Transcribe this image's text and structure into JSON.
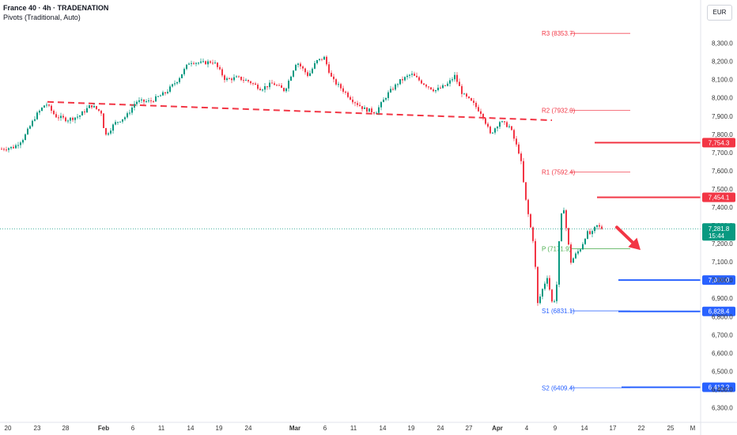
{
  "header": {
    "title": "France 40 · 4h · TRADENATION",
    "subtitle": "Pivots (Traditional, Auto)"
  },
  "currency": "EUR",
  "colors": {
    "up": "#089981",
    "down": "#f23645",
    "resistance": "#f23645",
    "support": "#2962ff",
    "pivot_p": "#4caf50",
    "trend": "#f23645",
    "text": "#131722",
    "axis_text": "#333333",
    "grid_current": "#089981"
  },
  "chart_data": {
    "type": "candlestick",
    "title": "France 40 · 4h · TRADENATION",
    "ylim": [
      6250,
      8450
    ],
    "x_range": [
      0,
      932
    ],
    "y_ticks": [
      6300,
      6400,
      6500,
      6600,
      6700,
      6800,
      6900,
      7000,
      7100,
      7200,
      7300,
      7400,
      7500,
      7600,
      7700,
      7800,
      7900,
      8000,
      8100,
      8200,
      8300
    ],
    "y_tick_labels": [
      "6,300.0",
      "6,400.0",
      "6,500.0",
      "6,600.0",
      "6,700.0",
      "6,800.0",
      "6,900.0",
      "7,000.0",
      "7,100.0",
      "7,200.0",
      "7,300.0",
      "7,400.0",
      "7,500.0",
      "7,600.0",
      "7,700.0",
      "7,800.0",
      "7,900.0",
      "8,000.0",
      "8,100.0",
      "8,200.0",
      "8,300.0"
    ],
    "x_ticks": [
      {
        "label": "20",
        "x": 10,
        "bold": false
      },
      {
        "label": "23",
        "x": 47,
        "bold": false
      },
      {
        "label": "28",
        "x": 83,
        "bold": false
      },
      {
        "label": "Feb",
        "x": 131,
        "bold": true
      },
      {
        "label": "6",
        "x": 168,
        "bold": false
      },
      {
        "label": "11",
        "x": 204,
        "bold": false
      },
      {
        "label": "14",
        "x": 241,
        "bold": false
      },
      {
        "label": "19",
        "x": 277,
        "bold": false
      },
      {
        "label": "24",
        "x": 314,
        "bold": false
      },
      {
        "label": "Mar",
        "x": 373,
        "bold": true
      },
      {
        "label": "6",
        "x": 411,
        "bold": false
      },
      {
        "label": "11",
        "x": 447,
        "bold": false
      },
      {
        "label": "14",
        "x": 484,
        "bold": false
      },
      {
        "label": "19",
        "x": 520,
        "bold": false
      },
      {
        "label": "24",
        "x": 557,
        "bold": false
      },
      {
        "label": "27",
        "x": 593,
        "bold": false
      },
      {
        "label": "Apr",
        "x": 629,
        "bold": true
      },
      {
        "label": "4",
        "x": 666,
        "bold": false
      },
      {
        "label": "9",
        "x": 702,
        "bold": false
      },
      {
        "label": "14",
        "x": 739,
        "bold": false
      },
      {
        "label": "17",
        "x": 775,
        "bold": false
      },
      {
        "label": "22",
        "x": 811,
        "bold": false
      },
      {
        "label": "25",
        "x": 848,
        "bold": false
      },
      {
        "label": "M",
        "x": 876,
        "bold": false
      }
    ],
    "price_path": [
      {
        "x": 2,
        "y": 7720
      },
      {
        "x": 18,
        "y": 7730
      },
      {
        "x": 30,
        "y": 7780
      },
      {
        "x": 45,
        "y": 7900
      },
      {
        "x": 58,
        "y": 7970
      },
      {
        "x": 70,
        "y": 7900
      },
      {
        "x": 85,
        "y": 7880
      },
      {
        "x": 100,
        "y": 7900
      },
      {
        "x": 115,
        "y": 7960
      },
      {
        "x": 128,
        "y": 7920
      },
      {
        "x": 133,
        "y": 7790
      },
      {
        "x": 145,
        "y": 7860
      },
      {
        "x": 160,
        "y": 7900
      },
      {
        "x": 172,
        "y": 7980
      },
      {
        "x": 190,
        "y": 7980
      },
      {
        "x": 210,
        "y": 8030
      },
      {
        "x": 225,
        "y": 8100
      },
      {
        "x": 240,
        "y": 8200
      },
      {
        "x": 255,
        "y": 8190
      },
      {
        "x": 270,
        "y": 8200
      },
      {
        "x": 285,
        "y": 8100
      },
      {
        "x": 300,
        "y": 8110
      },
      {
        "x": 315,
        "y": 8090
      },
      {
        "x": 330,
        "y": 8050
      },
      {
        "x": 345,
        "y": 8080
      },
      {
        "x": 360,
        "y": 8040
      },
      {
        "x": 375,
        "y": 8200
      },
      {
        "x": 390,
        "y": 8120
      },
      {
        "x": 400,
        "y": 8200
      },
      {
        "x": 410,
        "y": 8220
      },
      {
        "x": 420,
        "y": 8100
      },
      {
        "x": 432,
        "y": 8050
      },
      {
        "x": 445,
        "y": 7990
      },
      {
        "x": 460,
        "y": 7940
      },
      {
        "x": 475,
        "y": 7920
      },
      {
        "x": 490,
        "y": 8020
      },
      {
        "x": 505,
        "y": 8090
      },
      {
        "x": 520,
        "y": 8130
      },
      {
        "x": 535,
        "y": 8080
      },
      {
        "x": 550,
        "y": 8040
      },
      {
        "x": 565,
        "y": 8070
      },
      {
        "x": 575,
        "y": 8120
      },
      {
        "x": 585,
        "y": 8020
      },
      {
        "x": 598,
        "y": 7970
      },
      {
        "x": 610,
        "y": 7910
      },
      {
        "x": 620,
        "y": 7800
      },
      {
        "x": 632,
        "y": 7870
      },
      {
        "x": 645,
        "y": 7840
      },
      {
        "x": 652,
        "y": 7750
      },
      {
        "x": 658,
        "y": 7680
      },
      {
        "x": 664,
        "y": 7460
      },
      {
        "x": 670,
        "y": 7310
      },
      {
        "x": 675,
        "y": 7200
      },
      {
        "x": 680,
        "y": 6870
      },
      {
        "x": 686,
        "y": 6950
      },
      {
        "x": 692,
        "y": 7020
      },
      {
        "x": 698,
        "y": 6880
      },
      {
        "x": 703,
        "y": 6900
      },
      {
        "x": 708,
        "y": 7280
      },
      {
        "x": 712,
        "y": 7430
      },
      {
        "x": 717,
        "y": 7250
      },
      {
        "x": 722,
        "y": 7100
      },
      {
        "x": 728,
        "y": 7140
      },
      {
        "x": 735,
        "y": 7180
      },
      {
        "x": 742,
        "y": 7260
      },
      {
        "x": 748,
        "y": 7250
      },
      {
        "x": 754,
        "y": 7300
      },
      {
        "x": 758,
        "y": 7290
      },
      {
        "x": 762,
        "y": 7282
      }
    ],
    "pivots": [
      {
        "label": "R3 (8353.7)",
        "value": 8353.7,
        "kind": "resistance",
        "x_from": 685,
        "x_to": 797
      },
      {
        "label": "R2 (7932.0)",
        "value": 7932.0,
        "kind": "resistance",
        "x_from": 685,
        "x_to": 797
      },
      {
        "label": "R1 (7592.4)",
        "value": 7592.4,
        "kind": "resistance",
        "x_from": 685,
        "x_to": 797
      },
      {
        "label": "P (7171.9)",
        "value": 7171.9,
        "kind": "pivot",
        "x_from": 685,
        "x_to": 797
      },
      {
        "label": "S1 (6831.1)",
        "value": 6831.1,
        "kind": "support",
        "x_from": 685,
        "x_to": 797
      },
      {
        "label": "S2 (6409.4)",
        "value": 6409.4,
        "kind": "support",
        "x_from": 685,
        "x_to": 797
      }
    ],
    "levels": [
      {
        "value": 7754.3,
        "label": "7,754.3",
        "kind": "resistance",
        "x_from": 752
      },
      {
        "value": 7454.1,
        "label": "7,454.1",
        "kind": "resistance",
        "x_from": 755
      },
      {
        "value": 7000.0,
        "label": "7,000.0",
        "kind": "support",
        "x_from": 782
      },
      {
        "value": 6828.4,
        "label": "6,828.4",
        "kind": "support",
        "x_from": 782
      },
      {
        "value": 6412.2,
        "label": "6,412.2",
        "kind": "support",
        "x_from": 786
      }
    ],
    "current_price": {
      "value": 7281.8,
      "label": "7,281.8",
      "countdown": "15:44"
    },
    "trendline": {
      "x1": 60,
      "y1": 7978,
      "x2": 698,
      "y2": 7877
    },
    "arrow": {
      "x1": 780,
      "y1": 7290,
      "x2": 810,
      "y2": 7165
    }
  }
}
